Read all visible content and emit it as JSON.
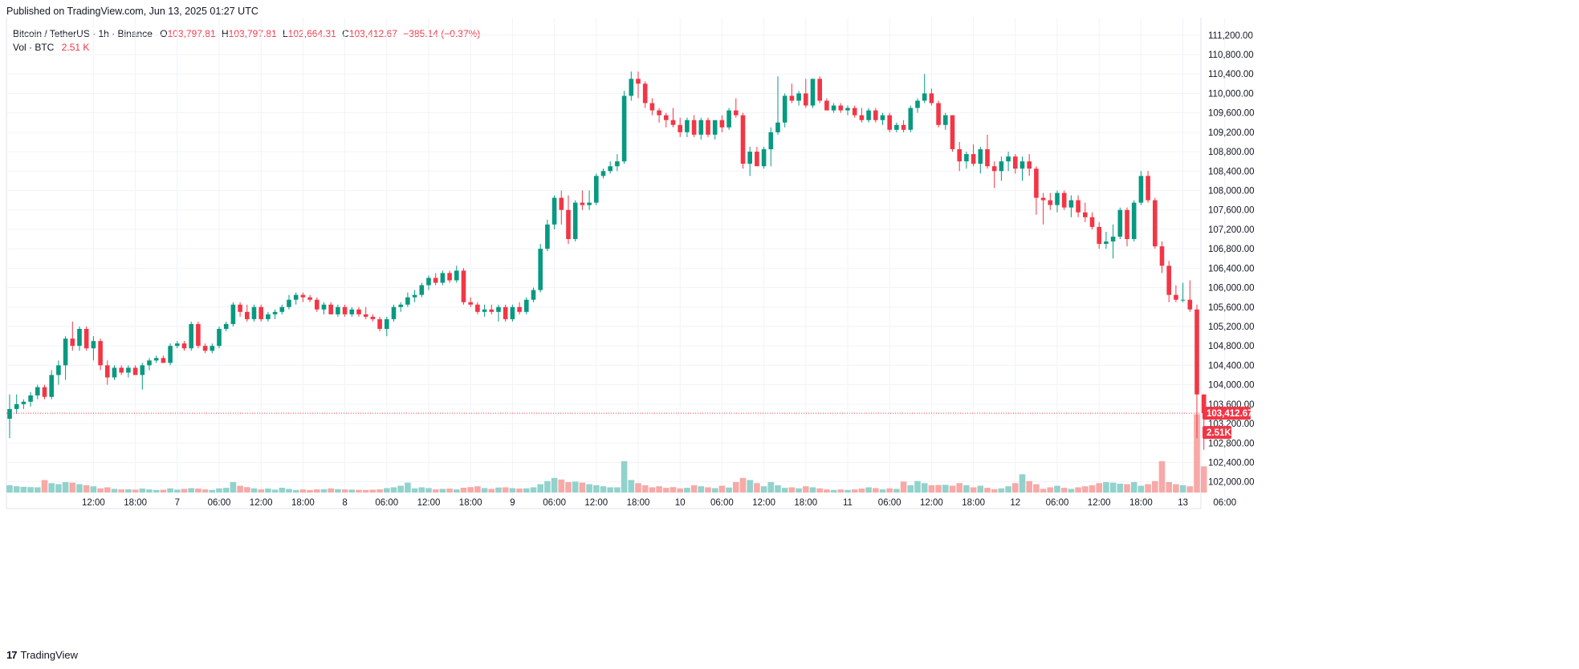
{
  "header": {
    "published": "Published on TradingView.com, Jun 13, 2025 01:27 UTC"
  },
  "legend": {
    "symbol": "Bitcoin / TetherUS · 1h · Binance",
    "o_label": "O",
    "o_value": "103,797.81",
    "h_label": "H",
    "h_value": "103,797.81",
    "l_label": "L",
    "l_value": "102,664.31",
    "c_label": "C",
    "c_value": "103,412.67",
    "change": "−385.14 (−0.37%)",
    "vol_label": "Vol · BTC",
    "vol_value": "2.51 K"
  },
  "footer": {
    "brand": "TradingView",
    "logo_icon": "tradingview-logo-icon"
  },
  "colors": {
    "up": "#089981",
    "down": "#f23645",
    "up_volume": "#92d2cc",
    "down_volume": "#f7a9a7",
    "grid": "#f0f3fa",
    "price_line": "#f23645"
  },
  "chart_data": {
    "type": "candlestick",
    "symbol": "Bitcoin / TetherUS",
    "interval": "1h",
    "exchange": "Binance",
    "y_axis": {
      "position": "right",
      "range": [
        101780,
        111560
      ],
      "ticks": [
        "111,200.00",
        "110,800.00",
        "110,400.00",
        "110,000.00",
        "109,600.00",
        "109,200.00",
        "108,800.00",
        "108,400.00",
        "108,000.00",
        "107,600.00",
        "107,200.00",
        "106,800.00",
        "106,400.00",
        "106,000.00",
        "105,600.00",
        "105,200.00",
        "104,800.00",
        "104,400.00",
        "104,000.00",
        "103,600.00",
        "103,200.00",
        "102,800.00",
        "102,400.00",
        "102,000.00"
      ],
      "tick_values": [
        111200,
        110800,
        110400,
        110000,
        109600,
        109200,
        108800,
        108400,
        108000,
        107600,
        107200,
        106800,
        106400,
        106000,
        105600,
        105200,
        104800,
        104400,
        104000,
        103600,
        103200,
        102800,
        102400,
        102000
      ]
    },
    "x_axis": {
      "labels": [
        "12:00",
        "18:00",
        "7",
        "06:00",
        "12:00",
        "18:00",
        "8",
        "06:00",
        "12:00",
        "18:00",
        "9",
        "06:00",
        "12:00",
        "18:00",
        "10",
        "06:00",
        "12:00",
        "18:00",
        "11",
        "06:00",
        "12:00",
        "18:00",
        "12",
        "06:00",
        "12:00",
        "18:00",
        "13",
        "06:00"
      ],
      "label_hours": [
        12,
        18,
        24,
        30,
        36,
        42,
        48,
        54,
        60,
        66,
        72,
        78,
        84,
        90,
        96,
        102,
        108,
        114,
        120,
        126,
        132,
        138,
        144,
        150,
        156,
        162,
        168,
        174
      ]
    },
    "last_price": {
      "value": 103412.67,
      "label": "103,412.67"
    },
    "last_volume": {
      "label": "2.51K"
    },
    "grid": true,
    "candles_ohlcv": [
      [
        103300,
        103800,
        102900,
        103500,
        700
      ],
      [
        103500,
        103800,
        103400,
        103600,
        600
      ],
      [
        103600,
        103700,
        103500,
        103650,
        550
      ],
      [
        103650,
        103850,
        103550,
        103780,
        520
      ],
      [
        103780,
        104000,
        103700,
        103950,
        500
      ],
      [
        103950,
        104000,
        103700,
        103750,
        1200
      ],
      [
        103750,
        104300,
        103700,
        104200,
        900
      ],
      [
        104200,
        104500,
        104000,
        104400,
        800
      ],
      [
        104400,
        105000,
        104100,
        104950,
        1000
      ],
      [
        104950,
        105300,
        104700,
        104800,
        950
      ],
      [
        104800,
        105200,
        104700,
        105150,
        800
      ],
      [
        105150,
        105200,
        104700,
        104750,
        700
      ],
      [
        104750,
        105000,
        104500,
        104900,
        600
      ],
      [
        104900,
        104950,
        104300,
        104400,
        400
      ],
      [
        104400,
        104500,
        104000,
        104150,
        500
      ],
      [
        104150,
        104400,
        104100,
        104350,
        350
      ],
      [
        104350,
        104400,
        104200,
        104250,
        300
      ],
      [
        104250,
        104400,
        104150,
        104350,
        320
      ],
      [
        104350,
        104400,
        104200,
        104200,
        280
      ],
      [
        104200,
        104450,
        103900,
        104400,
        380
      ],
      [
        104400,
        104550,
        104300,
        104500,
        300
      ],
      [
        104500,
        104600,
        104450,
        104550,
        250
      ],
      [
        104550,
        104600,
        104450,
        104450,
        270
      ],
      [
        104450,
        104850,
        104400,
        104800,
        400
      ],
      [
        104800,
        104900,
        104750,
        104850,
        280
      ],
      [
        104850,
        104900,
        104700,
        104750,
        350
      ],
      [
        104750,
        105300,
        104700,
        105250,
        420
      ],
      [
        105250,
        105300,
        104750,
        104800,
        380
      ],
      [
        104800,
        104850,
        104650,
        104700,
        300
      ],
      [
        104700,
        104850,
        104650,
        104800,
        250
      ],
      [
        104800,
        105200,
        104750,
        105150,
        400
      ],
      [
        105150,
        105300,
        105100,
        105250,
        450
      ],
      [
        105250,
        105700,
        105200,
        105650,
        1000
      ],
      [
        105650,
        105700,
        105400,
        105500,
        650
      ],
      [
        105500,
        105650,
        105300,
        105350,
        520
      ],
      [
        105350,
        105650,
        105300,
        105600,
        400
      ],
      [
        105600,
        105650,
        105300,
        105350,
        300
      ],
      [
        105350,
        105500,
        105300,
        105450,
        380
      ],
      [
        105450,
        105550,
        105350,
        105500,
        280
      ],
      [
        105500,
        105650,
        105450,
        105600,
        460
      ],
      [
        105600,
        105850,
        105550,
        105750,
        350
      ],
      [
        105750,
        105900,
        105650,
        105850,
        250
      ],
      [
        105850,
        105900,
        105700,
        105800,
        300
      ],
      [
        105800,
        105850,
        105700,
        105750,
        240
      ],
      [
        105750,
        105800,
        105500,
        105550,
        300
      ],
      [
        105550,
        105700,
        105450,
        105650,
        320
      ],
      [
        105650,
        105700,
        105450,
        105450,
        400
      ],
      [
        105450,
        105650,
        105400,
        105600,
        330
      ],
      [
        105600,
        105650,
        105400,
        105450,
        300
      ],
      [
        105450,
        105600,
        105400,
        105550,
        280
      ],
      [
        105550,
        105600,
        105400,
        105450,
        260
      ],
      [
        105450,
        105600,
        105350,
        105400,
        250
      ],
      [
        105400,
        105450,
        105300,
        105350,
        270
      ],
      [
        105350,
        105400,
        105100,
        105150,
        300
      ],
      [
        105150,
        105400,
        105000,
        105350,
        420
      ],
      [
        105350,
        105650,
        105300,
        105600,
        500
      ],
      [
        105600,
        105700,
        105500,
        105650,
        650
      ],
      [
        105650,
        105900,
        105600,
        105800,
        950
      ],
      [
        105800,
        105950,
        105700,
        105850,
        400
      ],
      [
        105850,
        106100,
        105800,
        106050,
        500
      ],
      [
        106050,
        106250,
        105950,
        106200,
        420
      ],
      [
        106200,
        106300,
        106050,
        106100,
        300
      ],
      [
        106100,
        106350,
        106050,
        106300,
        350
      ],
      [
        106300,
        106350,
        106100,
        106150,
        380
      ],
      [
        106150,
        106450,
        106100,
        106350,
        300
      ],
      [
        106350,
        106400,
        105650,
        105700,
        460
      ],
      [
        105700,
        105800,
        105600,
        105650,
        520
      ],
      [
        105650,
        105700,
        105450,
        105500,
        600
      ],
      [
        105500,
        105650,
        105400,
        105550,
        430
      ],
      [
        105550,
        105650,
        105450,
        105500,
        350
      ],
      [
        105500,
        105650,
        105300,
        105600,
        480
      ],
      [
        105600,
        105650,
        105300,
        105350,
        500
      ],
      [
        105350,
        105650,
        105300,
        105600,
        420
      ],
      [
        105600,
        105700,
        105450,
        105500,
        380
      ],
      [
        105500,
        105800,
        105450,
        105750,
        400
      ],
      [
        105750,
        106000,
        105700,
        105950,
        500
      ],
      [
        105950,
        106900,
        105900,
        106800,
        800
      ],
      [
        106800,
        107400,
        106750,
        107300,
        1100
      ],
      [
        107300,
        107900,
        107200,
        107850,
        1400
      ],
      [
        107850,
        108000,
        107300,
        107600,
        1250
      ],
      [
        107600,
        107900,
        106900,
        107000,
        1000
      ],
      [
        107000,
        107800,
        106950,
        107750,
        1050
      ],
      [
        107750,
        108000,
        107600,
        107700,
        950
      ],
      [
        107700,
        108000,
        107600,
        107750,
        800
      ],
      [
        107750,
        108350,
        107700,
        108300,
        700
      ],
      [
        108300,
        108450,
        108250,
        108400,
        600
      ],
      [
        108400,
        108600,
        108350,
        108500,
        500
      ],
      [
        108500,
        108750,
        108400,
        108600,
        500
      ],
      [
        108600,
        110050,
        108550,
        109950,
        3000
      ],
      [
        109950,
        110450,
        109850,
        110300,
        1200
      ],
      [
        110300,
        110450,
        109900,
        110200,
        900
      ],
      [
        110200,
        110250,
        109700,
        109800,
        700
      ],
      [
        109800,
        109900,
        109550,
        109650,
        500
      ],
      [
        109650,
        109700,
        109400,
        109550,
        600
      ],
      [
        109550,
        109600,
        109300,
        109450,
        450
      ],
      [
        109450,
        109700,
        109300,
        109350,
        520
      ],
      [
        109350,
        109500,
        109100,
        109200,
        400
      ],
      [
        109200,
        109500,
        109100,
        109450,
        450
      ],
      [
        109450,
        109550,
        109100,
        109150,
        700
      ],
      [
        109150,
        109500,
        109050,
        109450,
        600
      ],
      [
        109450,
        109500,
        109100,
        109150,
        500
      ],
      [
        109150,
        109400,
        109050,
        109450,
        420
      ],
      [
        109450,
        109550,
        109200,
        109300,
        650
      ],
      [
        109300,
        109700,
        109250,
        109650,
        480
      ],
      [
        109650,
        109900,
        109500,
        109550,
        1000
      ],
      [
        109550,
        109600,
        108450,
        108550,
        1400
      ],
      [
        108550,
        108900,
        108300,
        108800,
        1200
      ],
      [
        108800,
        108900,
        108550,
        108500,
        900
      ],
      [
        108500,
        108900,
        108450,
        108850,
        600
      ],
      [
        108850,
        109300,
        108500,
        109200,
        1000
      ],
      [
        109200,
        110350,
        109150,
        109400,
        700
      ],
      [
        109400,
        110000,
        109300,
        109950,
        450
      ],
      [
        109950,
        110200,
        109800,
        109850,
        500
      ],
      [
        109850,
        110050,
        109750,
        110000,
        400
      ],
      [
        110000,
        110300,
        109700,
        109750,
        600
      ],
      [
        109750,
        110250,
        109700,
        110300,
        500
      ],
      [
        110300,
        110350,
        109800,
        109850,
        400
      ],
      [
        109850,
        109900,
        109650,
        109650,
        300
      ],
      [
        109650,
        109800,
        109600,
        109750,
        250
      ],
      [
        109750,
        109800,
        109600,
        109650,
        300
      ],
      [
        109650,
        109750,
        109550,
        109700,
        250
      ],
      [
        109700,
        109750,
        109500,
        109550,
        300
      ],
      [
        109550,
        109700,
        109400,
        109450,
        380
      ],
      [
        109450,
        109700,
        109400,
        109650,
        500
      ],
      [
        109650,
        109700,
        109400,
        109450,
        420
      ],
      [
        109450,
        109600,
        109350,
        109550,
        300
      ],
      [
        109550,
        109600,
        109200,
        109250,
        400
      ],
      [
        109250,
        109400,
        109200,
        109350,
        350
      ],
      [
        109350,
        109450,
        109200,
        109250,
        1050
      ],
      [
        109250,
        109750,
        109200,
        109700,
        700
      ],
      [
        109700,
        109900,
        109600,
        109850,
        1100
      ],
      [
        109850,
        110400,
        109800,
        110000,
        900
      ],
      [
        110000,
        110100,
        109750,
        109800,
        700
      ],
      [
        109800,
        109850,
        109300,
        109350,
        720
      ],
      [
        109350,
        109600,
        109250,
        109550,
        740
      ],
      [
        109550,
        109550,
        108800,
        108850,
        650
      ],
      [
        108850,
        109000,
        108400,
        108600,
        900
      ],
      [
        108600,
        108800,
        108450,
        108750,
        700
      ],
      [
        108750,
        108950,
        108500,
        108550,
        500
      ],
      [
        108550,
        108900,
        108350,
        108850,
        650
      ],
      [
        108850,
        109150,
        108450,
        108500,
        450
      ],
      [
        108500,
        108600,
        108050,
        108400,
        320
      ],
      [
        108400,
        108700,
        108200,
        108600,
        400
      ],
      [
        108600,
        108800,
        108400,
        108700,
        600
      ],
      [
        108700,
        108750,
        108350,
        108450,
        900
      ],
      [
        108450,
        108700,
        108200,
        108600,
        1750
      ],
      [
        108600,
        108750,
        108300,
        108450,
        1100
      ],
      [
        108450,
        108500,
        107500,
        107850,
        800
      ],
      [
        107850,
        107950,
        107300,
        107800,
        350
      ],
      [
        107800,
        107950,
        107600,
        107700,
        500
      ],
      [
        107700,
        108000,
        107550,
        107950,
        650
      ],
      [
        107950,
        108000,
        107600,
        107650,
        450
      ],
      [
        107650,
        107900,
        107450,
        107800,
        350
      ],
      [
        107800,
        107900,
        107450,
        107550,
        500
      ],
      [
        107550,
        107750,
        107350,
        107450,
        600
      ],
      [
        107450,
        107550,
        107200,
        107250,
        700
      ],
      [
        107250,
        107350,
        106800,
        106900,
        900
      ],
      [
        106900,
        107150,
        106800,
        106950,
        1000
      ],
      [
        106950,
        107300,
        106600,
        107050,
        950
      ],
      [
        107050,
        107650,
        107000,
        107600,
        850
      ],
      [
        107600,
        107650,
        106850,
        107000,
        800
      ],
      [
        107000,
        107800,
        106950,
        107750,
        1000
      ],
      [
        107750,
        108400,
        107700,
        108300,
        650
      ],
      [
        108300,
        108400,
        107750,
        107800,
        800
      ],
      [
        107800,
        107850,
        106800,
        106850,
        1100
      ],
      [
        106850,
        106950,
        106300,
        106450,
        3000
      ],
      [
        106450,
        106550,
        105700,
        105850,
        1000
      ],
      [
        105850,
        106050,
        105700,
        105750,
        800
      ],
      [
        105750,
        106100,
        105700,
        105750,
        700
      ],
      [
        105750,
        106150,
        105500,
        105550,
        600
      ],
      [
        105550,
        105650,
        102900,
        103800,
        7500
      ],
      [
        103800,
        103800,
        102660,
        103413,
        2510
      ]
    ]
  }
}
